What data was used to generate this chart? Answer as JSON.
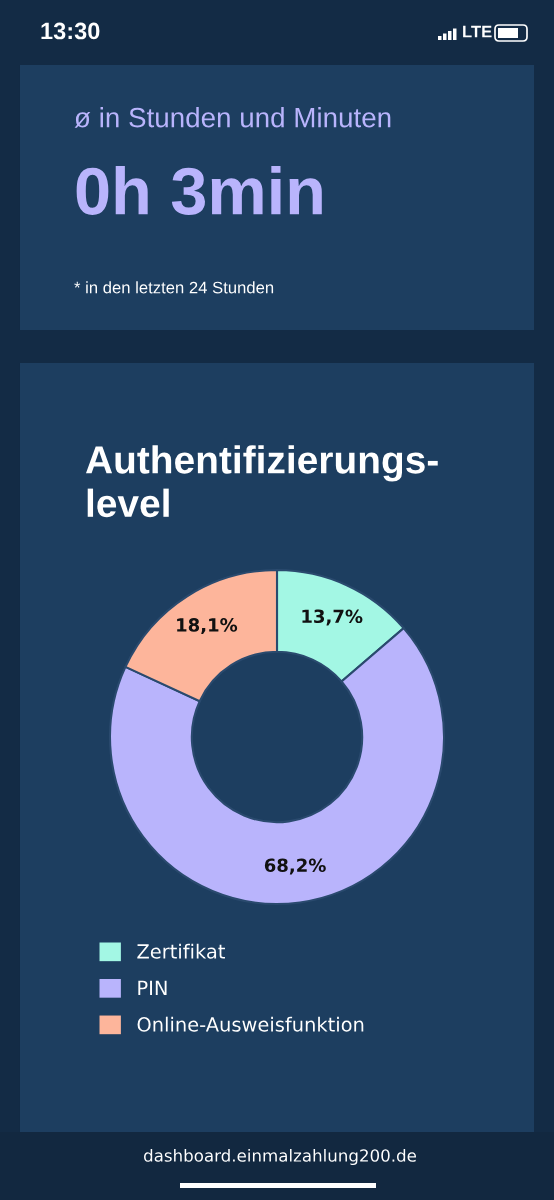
{
  "chart_data": [
    {
      "type": "other",
      "annotations": [
        "13:30",
        "LTE",
        "ø in Stunden und Minuten",
        "0h 3min",
        "* in den letzten 24 Stunden"
      ]
    },
    {
      "type": "donut",
      "title": "Authentifizierungs-\nlevel",
      "categories": [
        "Zertifikat",
        "PIN",
        "Online-Ausweisfunktion"
      ],
      "values": [
        13.7,
        68.2,
        18.1
      ],
      "colors": [
        "#a3f7e4",
        "#b9b4fc",
        "#fdb59b"
      ],
      "value_labels": [
        "13,7%",
        "68,2%",
        "18,1%"
      ],
      "legend": "bottom",
      "annotations": [
        "dashboard.einmalzahlung200.de"
      ]
    }
  ]
}
